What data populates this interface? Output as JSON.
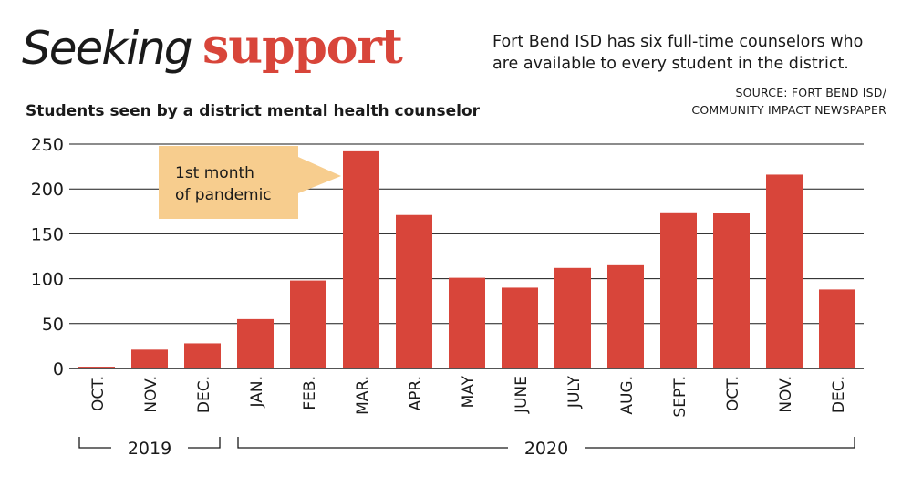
{
  "header": {
    "title_part1": "Seeking",
    "title_part2": "support",
    "subtitle": "Students seen by a district mental health counselor",
    "note": "Fort Bend ISD has six full-time counselors who are available to every student in the district.",
    "source_line1": "SOURCE: FORT BEND ISD/",
    "source_line2": "COMMUNITY IMPACT NEWSPAPER"
  },
  "colors": {
    "bar": "#d8453a",
    "title_accent": "#d8453a",
    "annotation_fill": "#f7cd8e",
    "text": "#1a1a1a",
    "gridline": "#1a1a1a"
  },
  "chart_data": {
    "type": "bar",
    "title": "Students seen by a district mental health counselor",
    "xlabel": "",
    "ylabel": "",
    "ylim": [
      0,
      250
    ],
    "yticks": [
      0,
      50,
      100,
      150,
      200,
      250
    ],
    "grid": true,
    "categories": [
      "OCT.",
      "NOV.",
      "DEC.",
      "JAN.",
      "FEB.",
      "MAR.",
      "APR.",
      "MAY",
      "JUNE",
      "JULY",
      "AUG.",
      "SEPT.",
      "OCT.",
      "NOV.",
      "DEC."
    ],
    "values": [
      2,
      21,
      28,
      55,
      98,
      242,
      171,
      101,
      90,
      112,
      115,
      174,
      173,
      216,
      88
    ],
    "year_groups": [
      {
        "label": "2019",
        "start": 0,
        "end": 2
      },
      {
        "label": "2020",
        "start": 3,
        "end": 14
      }
    ],
    "annotations": [
      {
        "text_line1": "1st month",
        "text_line2": "of pandemic",
        "category_index": 5
      }
    ]
  }
}
